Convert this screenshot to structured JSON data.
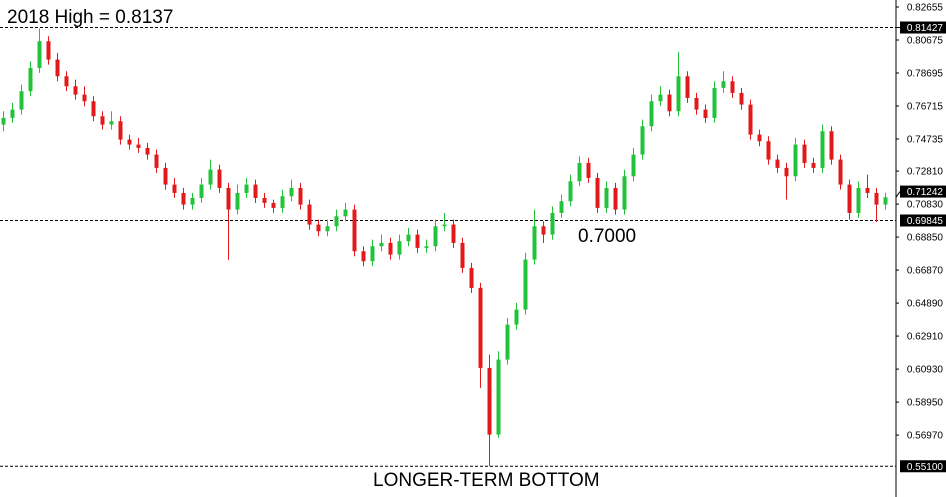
{
  "chart_data": {
    "type": "candlestick",
    "title": "",
    "xlabel": "",
    "ylabel": "",
    "ylim": [
      0.549,
      0.83
    ],
    "grid": false,
    "colors": {
      "up": "#22c33a",
      "down": "#e3191b",
      "level_line": "#000000",
      "label_bg": "#000000",
      "label_text": "#ffffff"
    },
    "y_ticks": [
      "0.82655",
      "0.80675",
      "0.78695",
      "0.76715",
      "0.74735",
      "0.72810",
      "0.70830",
      "0.68850",
      "0.66870",
      "0.64890",
      "0.62910",
      "0.60930",
      "0.58950",
      "0.56970"
    ],
    "price_labels": [
      {
        "value": "0.81427",
        "style": "highlighted"
      },
      {
        "value": "0.71242",
        "style": "highlighted"
      },
      {
        "value": "0.69845",
        "style": "highlighted"
      },
      {
        "value": "0.55100",
        "style": "highlighted"
      }
    ],
    "levels": [
      0.81427,
      0.69845,
      0.551
    ],
    "annotations": {
      "high": "2018 High = 0.8137",
      "support": "0.7000",
      "bottom": "LONGER-TERM BOTTOM"
    },
    "ohlc": [
      [
        0.756,
        0.764,
        0.752,
        0.76
      ],
      [
        0.76,
        0.769,
        0.757,
        0.765
      ],
      [
        0.765,
        0.78,
        0.762,
        0.776
      ],
      [
        0.776,
        0.794,
        0.773,
        0.79
      ],
      [
        0.79,
        0.8137,
        0.787,
        0.806
      ],
      [
        0.806,
        0.809,
        0.792,
        0.795
      ],
      [
        0.795,
        0.799,
        0.782,
        0.785
      ],
      [
        0.785,
        0.788,
        0.776,
        0.779
      ],
      [
        0.779,
        0.783,
        0.771,
        0.774
      ],
      [
        0.774,
        0.779,
        0.767,
        0.77
      ],
      [
        0.77,
        0.773,
        0.758,
        0.761
      ],
      [
        0.761,
        0.764,
        0.753,
        0.756
      ],
      [
        0.756,
        0.764,
        0.753,
        0.758
      ],
      [
        0.758,
        0.761,
        0.744,
        0.747
      ],
      [
        0.747,
        0.75,
        0.741,
        0.744
      ],
      [
        0.744,
        0.748,
        0.739,
        0.742
      ],
      [
        0.742,
        0.745,
        0.735,
        0.738
      ],
      [
        0.738,
        0.741,
        0.727,
        0.73
      ],
      [
        0.73,
        0.733,
        0.717,
        0.72
      ],
      [
        0.72,
        0.724,
        0.712,
        0.715
      ],
      [
        0.715,
        0.718,
        0.705,
        0.708
      ],
      [
        0.708,
        0.715,
        0.705,
        0.712
      ],
      [
        0.712,
        0.724,
        0.709,
        0.72
      ],
      [
        0.72,
        0.735,
        0.717,
        0.729
      ],
      [
        0.729,
        0.732,
        0.715,
        0.718
      ],
      [
        0.718,
        0.721,
        0.6748,
        0.705
      ],
      [
        0.705,
        0.72,
        0.702,
        0.715
      ],
      [
        0.715,
        0.724,
        0.712,
        0.72
      ],
      [
        0.72,
        0.723,
        0.709,
        0.712
      ],
      [
        0.712,
        0.715,
        0.706,
        0.709
      ],
      [
        0.709,
        0.711,
        0.703,
        0.706
      ],
      [
        0.706,
        0.717,
        0.703,
        0.713
      ],
      [
        0.713,
        0.723,
        0.71,
        0.718
      ],
      [
        0.718,
        0.721,
        0.705,
        0.708
      ],
      [
        0.708,
        0.711,
        0.693,
        0.696
      ],
      [
        0.696,
        0.699,
        0.689,
        0.692
      ],
      [
        0.692,
        0.699,
        0.689,
        0.695
      ],
      [
        0.695,
        0.705,
        0.692,
        0.701
      ],
      [
        0.701,
        0.709,
        0.698,
        0.705
      ],
      [
        0.705,
        0.708,
        0.677,
        0.68
      ],
      [
        0.68,
        0.683,
        0.671,
        0.674
      ],
      [
        0.674,
        0.687,
        0.671,
        0.683
      ],
      [
        0.683,
        0.69,
        0.68,
        0.685
      ],
      [
        0.685,
        0.688,
        0.675,
        0.678
      ],
      [
        0.678,
        0.69,
        0.675,
        0.686
      ],
      [
        0.686,
        0.694,
        0.683,
        0.69
      ],
      [
        0.69,
        0.693,
        0.679,
        0.682
      ],
      [
        0.682,
        0.687,
        0.679,
        0.683
      ],
      [
        0.683,
        0.699,
        0.68,
        0.695
      ],
      [
        0.695,
        0.703,
        0.692,
        0.696
      ],
      [
        0.696,
        0.699,
        0.682,
        0.685
      ],
      [
        0.685,
        0.688,
        0.667,
        0.67
      ],
      [
        0.67,
        0.673,
        0.655,
        0.658
      ],
      [
        0.658,
        0.661,
        0.598,
        0.61
      ],
      [
        0.61,
        0.618,
        0.551,
        0.57
      ],
      [
        0.57,
        0.62,
        0.568,
        0.615
      ],
      [
        0.615,
        0.64,
        0.612,
        0.636
      ],
      [
        0.636,
        0.649,
        0.633,
        0.645
      ],
      [
        0.645,
        0.679,
        0.642,
        0.675
      ],
      [
        0.675,
        0.705,
        0.672,
        0.695
      ],
      [
        0.695,
        0.698,
        0.685,
        0.69
      ],
      [
        0.69,
        0.707,
        0.687,
        0.703
      ],
      [
        0.703,
        0.714,
        0.7,
        0.71
      ],
      [
        0.71,
        0.726,
        0.707,
        0.722
      ],
      [
        0.722,
        0.737,
        0.719,
        0.733
      ],
      [
        0.733,
        0.736,
        0.721,
        0.724
      ],
      [
        0.724,
        0.727,
        0.703,
        0.706
      ],
      [
        0.706,
        0.722,
        0.703,
        0.718
      ],
      [
        0.718,
        0.721,
        0.702,
        0.705
      ],
      [
        0.705,
        0.729,
        0.702,
        0.725
      ],
      [
        0.725,
        0.742,
        0.722,
        0.738
      ],
      [
        0.738,
        0.759,
        0.735,
        0.755
      ],
      [
        0.755,
        0.774,
        0.752,
        0.77
      ],
      [
        0.77,
        0.779,
        0.767,
        0.774
      ],
      [
        0.774,
        0.777,
        0.761,
        0.764
      ],
      [
        0.764,
        0.7995,
        0.761,
        0.785
      ],
      [
        0.785,
        0.788,
        0.769,
        0.772
      ],
      [
        0.772,
        0.775,
        0.762,
        0.765
      ],
      [
        0.765,
        0.768,
        0.757,
        0.76
      ],
      [
        0.76,
        0.782,
        0.757,
        0.778
      ],
      [
        0.778,
        0.788,
        0.775,
        0.782
      ],
      [
        0.782,
        0.785,
        0.772,
        0.775
      ],
      [
        0.775,
        0.778,
        0.765,
        0.768
      ],
      [
        0.768,
        0.771,
        0.747,
        0.75
      ],
      [
        0.75,
        0.753,
        0.743,
        0.746
      ],
      [
        0.746,
        0.749,
        0.732,
        0.735
      ],
      [
        0.735,
        0.738,
        0.727,
        0.73
      ],
      [
        0.73,
        0.733,
        0.711,
        0.725
      ],
      [
        0.725,
        0.748,
        0.722,
        0.744
      ],
      [
        0.744,
        0.747,
        0.73,
        0.733
      ],
      [
        0.733,
        0.736,
        0.727,
        0.73
      ],
      [
        0.73,
        0.756,
        0.727,
        0.752
      ],
      [
        0.752,
        0.755,
        0.732,
        0.735
      ],
      [
        0.735,
        0.738,
        0.717,
        0.72
      ],
      [
        0.72,
        0.723,
        0.699,
        0.703
      ],
      [
        0.703,
        0.722,
        0.7,
        0.718
      ],
      [
        0.718,
        0.726,
        0.712,
        0.715
      ],
      [
        0.715,
        0.718,
        0.6975,
        0.708
      ],
      [
        0.708,
        0.715,
        0.705,
        0.7124
      ]
    ]
  }
}
